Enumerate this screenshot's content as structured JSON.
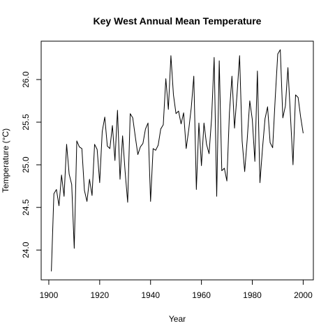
{
  "chart_data": {
    "type": "line",
    "title": "Key West Annual Mean Temperature",
    "xlabel": "Year",
    "ylabel": "Temperature (°C)",
    "xlim": [
      1897,
      2004
    ],
    "ylim": [
      23.65,
      26.45
    ],
    "x_ticks": [
      1900,
      1920,
      1940,
      1960,
      1980,
      2000
    ],
    "y_ticks": [
      24.0,
      24.5,
      25.0,
      25.5,
      26.0
    ],
    "x_tick_labels": [
      "1900",
      "1920",
      "1940",
      "1960",
      "1980",
      "2000"
    ],
    "y_tick_labels": [
      "24.0",
      "24.5",
      "25.0",
      "25.5",
      "26.0"
    ],
    "grid": false,
    "line_color": "#000000",
    "series": [
      {
        "x": [
          1901,
          1902,
          1903,
          1904,
          1905,
          1906,
          1907,
          1908,
          1909,
          1910,
          1911,
          1912,
          1913,
          1914,
          1915,
          1916,
          1917,
          1918,
          1919,
          1920,
          1921,
          1922,
          1923,
          1924,
          1925,
          1926,
          1927,
          1928,
          1929,
          1930,
          1931,
          1932,
          1933,
          1934,
          1935,
          1936,
          1937,
          1938,
          1939,
          1940,
          1941,
          1942,
          1943,
          1944,
          1945,
          1946,
          1947,
          1948,
          1949,
          1950,
          1951,
          1952,
          1953,
          1954,
          1955,
          1956,
          1957,
          1958,
          1959,
          1960,
          1961,
          1962,
          1963,
          1964,
          1965,
          1966,
          1967,
          1968,
          1969,
          1970,
          1971,
          1972,
          1973,
          1974,
          1975,
          1976,
          1977,
          1978,
          1979,
          1980,
          1981,
          1982,
          1983,
          1984,
          1985,
          1986,
          1987,
          1988,
          1989,
          1990,
          1991,
          1992,
          1993,
          1994,
          1995,
          1996,
          1997,
          1998,
          1999,
          2000
        ],
        "y": [
          23.75,
          24.66,
          24.71,
          24.52,
          24.88,
          24.63,
          25.24,
          24.89,
          24.77,
          24.02,
          25.28,
          25.21,
          25.19,
          24.7,
          24.57,
          24.83,
          24.64,
          25.24,
          25.18,
          24.79,
          25.39,
          25.56,
          25.22,
          25.19,
          25.46,
          25.05,
          25.64,
          24.83,
          25.34,
          24.92,
          24.56,
          25.6,
          25.55,
          25.33,
          25.12,
          25.21,
          25.25,
          25.42,
          25.49,
          24.57,
          25.19,
          25.17,
          25.23,
          25.42,
          25.47,
          26.01,
          25.65,
          26.28,
          25.82,
          25.6,
          25.63,
          25.48,
          25.61,
          25.19,
          25.41,
          25.67,
          26.04,
          24.71,
          25.49,
          24.99,
          25.49,
          25.24,
          25.13,
          25.55,
          26.26,
          24.63,
          26.22,
          24.93,
          24.96,
          24.81,
          25.61,
          26.04,
          25.43,
          25.83,
          26.28,
          25.28,
          24.92,
          25.3,
          25.75,
          25.53,
          25.04,
          26.1,
          24.79,
          25.19,
          25.54,
          25.68,
          25.26,
          25.2,
          25.78,
          26.3,
          26.35,
          25.55,
          25.69,
          26.14,
          25.57,
          25.0,
          25.82,
          25.79,
          25.56,
          25.37
        ]
      }
    ]
  }
}
